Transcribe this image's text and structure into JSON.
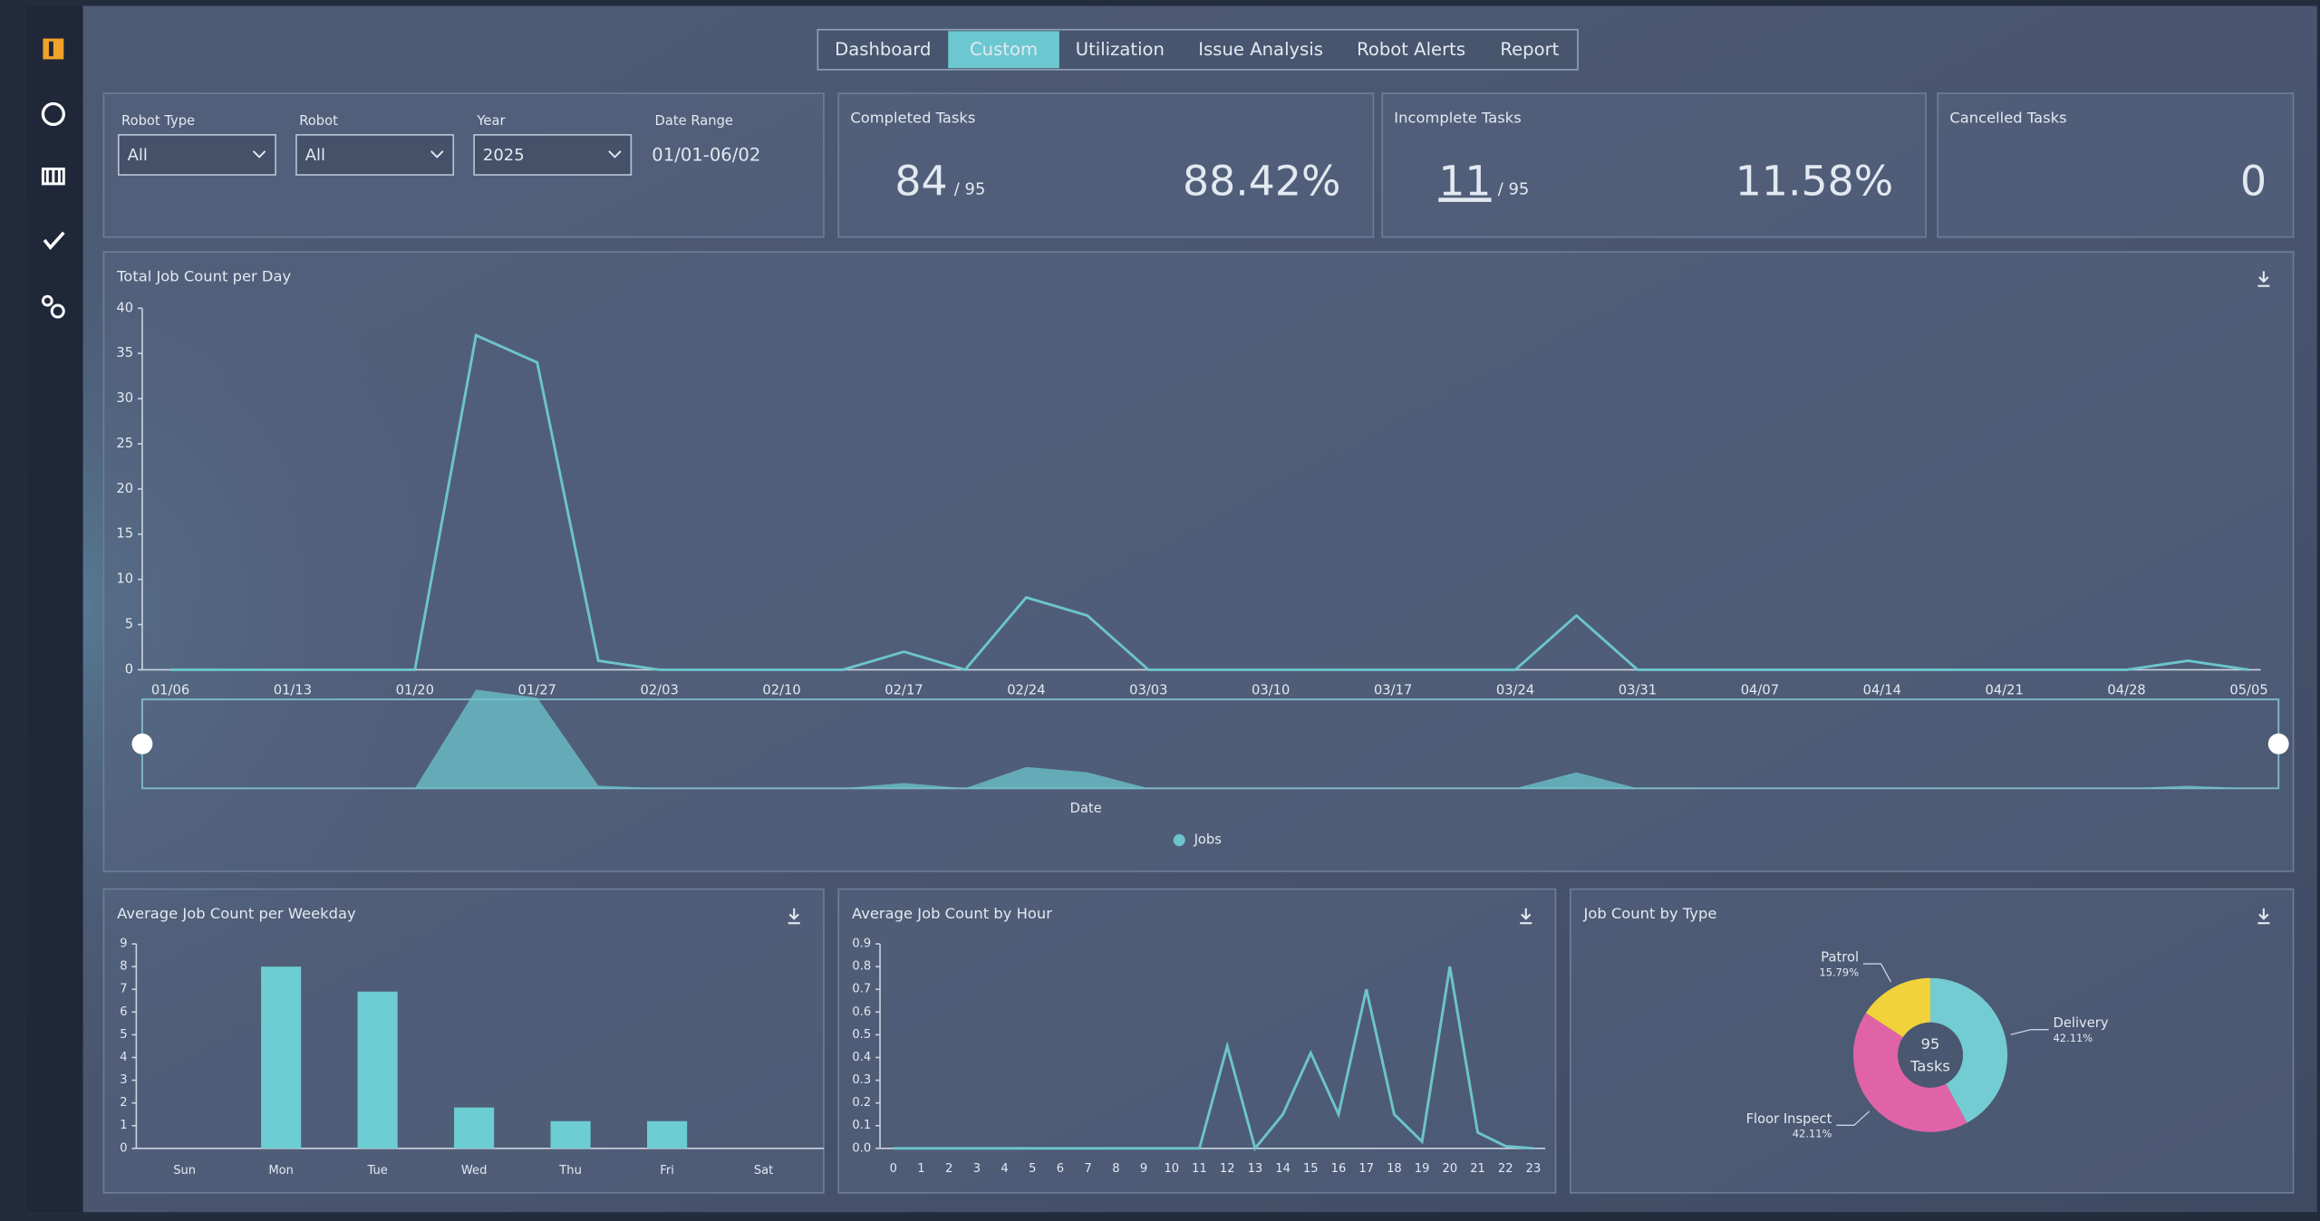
{
  "nav": {
    "tabs": [
      "Dashboard",
      "Custom",
      "Utilization",
      "Issue Analysis",
      "Robot Alerts",
      "Report"
    ],
    "active": 1
  },
  "filters": [
    {
      "label": "Robot Type",
      "value": "All"
    },
    {
      "label": "Robot",
      "value": "All"
    },
    {
      "label": "Year",
      "value": "2025"
    }
  ],
  "date_range": {
    "label": "Date Range",
    "value": "01/01-06/02"
  },
  "kpis": [
    {
      "title": "Completed Tasks",
      "count": 84,
      "total": "/ 95",
      "percent": "88.42%"
    },
    {
      "title": "Incomplete Tasks",
      "count": 11,
      "total": "/ 95",
      "percent": "11.58%"
    },
    {
      "title": "Cancelled Tasks",
      "count": 0
    }
  ],
  "chart_data": [
    {
      "type": "line",
      "title": "Total Job Count per Day",
      "x_label": "Date",
      "categories": [
        "01/06",
        null,
        "01/13",
        null,
        "01/20",
        null,
        "01/27",
        null,
        "02/03",
        null,
        "02/10",
        null,
        "02/17",
        null,
        "02/24",
        null,
        "03/03",
        null,
        "03/10",
        null,
        "03/17",
        null,
        "03/24",
        null,
        "03/31",
        null,
        "04/07",
        null,
        "04/14",
        null,
        "04/21",
        null,
        "04/28",
        null,
        "05/05"
      ],
      "series": [
        {
          "name": "Jobs",
          "color": "#6cc4cc",
          "values": [
            0,
            0,
            0,
            0,
            0,
            37,
            34,
            1,
            0,
            0,
            0,
            0,
            2,
            0,
            8,
            6,
            0,
            0,
            0,
            0,
            0,
            0,
            0,
            6,
            0,
            0,
            0,
            0,
            0,
            0,
            0,
            0,
            0,
            1,
            0
          ]
        }
      ],
      "ylim": [
        0,
        40
      ],
      "yticks": [
        0,
        5,
        10,
        15,
        20,
        25,
        30,
        35,
        40
      ],
      "legend": "bottom",
      "zoom": true
    },
    {
      "type": "bar",
      "title": "Average Job Count per Weekday",
      "categories": [
        "Sun",
        "Mon",
        "Tue",
        "Wed",
        "Thu",
        "Fri",
        "Sat"
      ],
      "values": [
        0,
        8,
        6.9,
        1.8,
        1.2,
        1.2,
        0
      ],
      "color": "#6ccdd2",
      "ylim": [
        0,
        9
      ],
      "yticks": [
        0,
        1,
        2,
        3,
        4,
        5,
        6,
        7,
        8,
        9
      ]
    },
    {
      "type": "line",
      "title": "Average Job Count by Hour",
      "categories": [
        "0",
        "1",
        "2",
        "3",
        "4",
        "5",
        "6",
        "7",
        "8",
        "9",
        "10",
        "11",
        "12",
        "13",
        "14",
        "15",
        "16",
        "17",
        "18",
        "19",
        "20",
        "21",
        "22",
        "23"
      ],
      "series": [
        {
          "color": "#6cc4cc",
          "values": [
            0,
            0,
            0,
            0,
            0,
            0,
            0,
            0,
            0,
            0,
            0,
            0,
            0.45,
            0,
            0.15,
            0.42,
            0.15,
            0.7,
            0.15,
            0.03,
            0.8,
            0.07,
            0.01,
            0
          ]
        }
      ],
      "ylim": [
        0,
        0.9
      ],
      "yticks": [
        {
          "value": 0,
          "label": "0.0"
        },
        0.1,
        0.2,
        0.3,
        0.4,
        0.5,
        0.6,
        0.7,
        0.8,
        0.9
      ]
    },
    {
      "type": "pie",
      "title": "Job Count by Type",
      "categories": [
        "Delivery",
        "Floor Inspect",
        "Patrol"
      ],
      "values": [
        42.11,
        42.11,
        15.79
      ],
      "value_labels": [
        "42.11%",
        "42.11%",
        "15.79%"
      ],
      "colors": [
        "#74ccd3",
        "#e063a8",
        "#f2d23a"
      ],
      "center_value": 95,
      "center_label": "Tasks"
    }
  ]
}
